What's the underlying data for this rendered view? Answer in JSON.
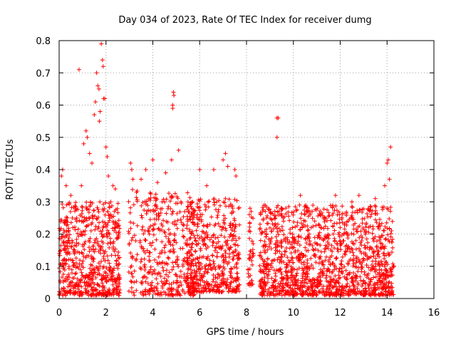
{
  "chart_data": {
    "type": "scatter",
    "title": "Day 034 of 2023, Rate Of TEC Index for receiver dumg",
    "xlabel": "GPS time / hours",
    "ylabel": "ROTI / TECUs",
    "xlim": [
      0,
      16
    ],
    "ylim": [
      0,
      0.8
    ],
    "grid": true,
    "marker": "+",
    "marker_color": "#ff0000",
    "x_tick_labels": [
      "0",
      "2",
      "4",
      "6",
      "8",
      "10",
      "12",
      "14",
      "16"
    ],
    "y_tick_labels": [
      "0",
      "0.1",
      "0.2",
      "0.3",
      "0.4",
      "0.5",
      "0.6",
      "0.7",
      "0.8"
    ],
    "series": [
      {
        "points": [
          [
            0.05,
            0.02
          ],
          [
            0.1,
            0.38
          ],
          [
            0.15,
            0.4
          ],
          [
            0.2,
            0.12
          ],
          [
            0.3,
            0.35
          ],
          [
            0.35,
            0.25
          ],
          [
            0.5,
            0.32
          ],
          [
            0.55,
            0.18
          ],
          [
            0.65,
            0.15
          ],
          [
            0.75,
            0.25
          ],
          [
            0.85,
            0.71
          ],
          [
            0.95,
            0.35
          ],
          [
            1.05,
            0.48
          ],
          [
            1.15,
            0.52
          ],
          [
            1.2,
            0.5
          ],
          [
            1.3,
            0.45
          ],
          [
            1.4,
            0.42
          ],
          [
            1.5,
            0.57
          ],
          [
            1.55,
            0.61
          ],
          [
            1.6,
            0.7
          ],
          [
            1.65,
            0.66
          ],
          [
            1.7,
            0.65
          ],
          [
            1.72,
            0.55
          ],
          [
            1.75,
            0.58
          ],
          [
            1.8,
            0.79
          ],
          [
            1.85,
            0.74
          ],
          [
            1.88,
            0.72
          ],
          [
            1.9,
            0.62
          ],
          [
            1.95,
            0.62
          ],
          [
            2.0,
            0.47
          ],
          [
            2.05,
            0.44
          ],
          [
            2.1,
            0.38
          ],
          [
            2.2,
            0.3
          ],
          [
            2.3,
            0.35
          ],
          [
            2.4,
            0.34
          ],
          [
            3.05,
            0.42
          ],
          [
            3.1,
            0.4
          ],
          [
            3.15,
            0.37
          ],
          [
            3.2,
            0.05
          ],
          [
            3.5,
            0.37
          ],
          [
            3.7,
            0.4
          ],
          [
            4.0,
            0.43
          ],
          [
            4.2,
            0.36
          ],
          [
            4.4,
            0.3
          ],
          [
            4.55,
            0.39
          ],
          [
            4.8,
            0.43
          ],
          [
            4.85,
            0.6
          ],
          [
            4.88,
            0.64
          ],
          [
            4.9,
            0.63
          ],
          [
            4.85,
            0.59
          ],
          [
            5.1,
            0.46
          ],
          [
            5.2,
            0.3
          ],
          [
            5.5,
            0.3
          ],
          [
            6.0,
            0.4
          ],
          [
            6.3,
            0.35
          ],
          [
            6.6,
            0.4
          ],
          [
            7.0,
            0.43
          ],
          [
            7.1,
            0.45
          ],
          [
            7.2,
            0.41
          ],
          [
            7.5,
            0.4
          ],
          [
            7.55,
            0.38
          ],
          [
            8.15,
            0.28
          ],
          [
            8.2,
            0.27
          ],
          [
            8.8,
            0.27
          ],
          [
            9.3,
            0.56
          ],
          [
            9.35,
            0.56
          ],
          [
            9.3,
            0.5
          ],
          [
            9.5,
            0.28
          ],
          [
            10.3,
            0.32
          ],
          [
            10.8,
            0.27
          ],
          [
            11.8,
            0.32
          ],
          [
            12.5,
            0.3
          ],
          [
            12.8,
            0.32
          ],
          [
            13.5,
            0.31
          ],
          [
            13.9,
            0.35
          ],
          [
            14.0,
            0.42
          ],
          [
            14.05,
            0.43
          ],
          [
            14.1,
            0.37
          ],
          [
            14.15,
            0.47
          ],
          [
            14.0,
            0.28
          ]
        ],
        "bands": [
          {
            "x": [
              0.0,
              2.6
            ],
            "y": [
              0.01,
              0.3
            ],
            "n": 650
          },
          {
            "x": [
              2.95,
              3.35
            ],
            "y": [
              0.01,
              0.35
            ],
            "n": 45
          },
          {
            "x": [
              3.45,
              5.8
            ],
            "y": [
              0.01,
              0.33
            ],
            "n": 380
          },
          {
            "x": [
              5.45,
              7.7
            ],
            "y": [
              0.02,
              0.31
            ],
            "n": 520
          },
          {
            "x": [
              8.05,
              8.3
            ],
            "y": [
              0.04,
              0.27
            ],
            "n": 40
          },
          {
            "x": [
              8.55,
              14.3
            ],
            "y": [
              0.01,
              0.29
            ],
            "n": 1400
          }
        ]
      }
    ]
  }
}
